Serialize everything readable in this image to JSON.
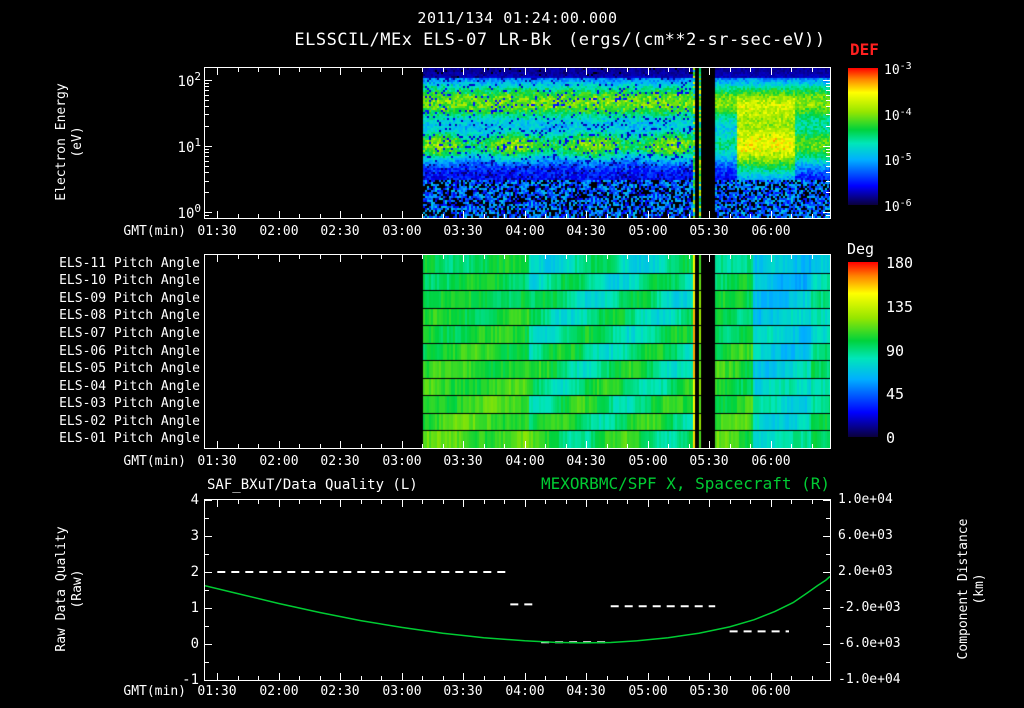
{
  "header": {
    "datetime": "2011/134 01:24:00.000",
    "instrument_title": "ELSSCIL/MEx ELS-07 LR-Bk",
    "units_label": "(ergs/(cm**2-sr-sec-eV))"
  },
  "colors": {
    "background": "#000000",
    "axis": "#ffffff",
    "def_label": "#ff2020",
    "green_series": "#00cc33"
  },
  "time_axis": {
    "label": "GMT(min)",
    "tick_labels": [
      "01:30",
      "02:00",
      "02:30",
      "03:00",
      "03:30",
      "04:00",
      "04:30",
      "05:00",
      "05:30",
      "06:00"
    ],
    "tick_minutes": [
      90,
      120,
      150,
      180,
      210,
      240,
      270,
      300,
      330,
      360
    ],
    "range_min": [
      84,
      389
    ],
    "minor_step_min": 10
  },
  "panel_energy": {
    "ylabel": [
      "Electron Energy",
      "(eV)"
    ],
    "ytick_base": "10",
    "ytick_exps": [
      "2",
      "1",
      "0"
    ],
    "colorbar": {
      "title": "DEF",
      "tick_base": "10",
      "tick_exps": [
        "-3",
        "-4",
        "-5",
        "-6"
      ]
    }
  },
  "panel_pitch": {
    "row_labels": [
      "ELS-11 Pitch Angle",
      "ELS-10 Pitch Angle",
      "ELS-09 Pitch Angle",
      "ELS-08 Pitch Angle",
      "ELS-07 Pitch Angle",
      "ELS-06 Pitch Angle",
      "ELS-05 Pitch Angle",
      "ELS-04 Pitch Angle",
      "ELS-03 Pitch Angle",
      "ELS-02 Pitch Angle",
      "ELS-01 Pitch Angle"
    ],
    "colorbar": {
      "title": "Deg",
      "ticks": [
        "180",
        "135",
        "90",
        "45",
        "0"
      ]
    }
  },
  "panel_line": {
    "title_left": "SAF_BXuT/Data Quality (L)",
    "title_right": "MEXORBMC/SPF X, Spacecraft (R)",
    "ylabel_left": [
      "Raw Data Quality",
      "(Raw)"
    ],
    "ylabel_right": [
      "Component Distance",
      "(km)"
    ],
    "yticks_left": [
      "4",
      "3",
      "2",
      "1",
      "0",
      "-1"
    ],
    "yticks_right": [
      "1.0e+04",
      "6.0e+03",
      "2.0e+03",
      "-2.0e+03",
      "-6.0e+03",
      "-1.0e+04"
    ]
  },
  "chart_data": [
    {
      "type": "heatmap",
      "name": "electron_energy_spectrogram",
      "title": "ELSSCIL/MEx ELS-07 LR-Bk",
      "z_units": "ergs/(cm**2-sr-sec-eV)",
      "z_scale": "log",
      "z_range": [
        1e-06,
        0.001
      ],
      "x_unit": "GMT minutes",
      "x_range_min": [
        84,
        389
      ],
      "y_unit": "eV",
      "y_scale": "log",
      "y_range_log10_eV": [
        -0.09,
        2.18
      ],
      "y_ticks_eV": [
        1,
        10,
        100
      ],
      "data_start_min": 190,
      "data_gap_min": [
        322,
        333
      ],
      "gap_stripes_min": [
        [
          322.6,
          323.6
        ],
        [
          324.9,
          325.9
        ]
      ],
      "background_rel_level": 0.12,
      "bands": [
        {
          "name": "core 5-20 eV band",
          "center_log10_eV": 1.02,
          "sigma_log10": 0.17,
          "rel_level": 0.38
        },
        {
          "name": "photoelectron 30-90 eV band",
          "center_log10_eV": 1.68,
          "sigma_log10": 0.22,
          "rel_level": 0.42
        },
        {
          "name": "post-gap enhancement blob",
          "t0_min": 344,
          "t1_min": 372,
          "center_log10_eV": 1.0,
          "sigma_log10": 0.32,
          "rel_level": 0.6
        }
      ]
    },
    {
      "type": "heatmap",
      "name": "pitch_angle_panels",
      "rows": [
        "ELS-11",
        "ELS-10",
        "ELS-09",
        "ELS-08",
        "ELS-07",
        "ELS-06",
        "ELS-05",
        "ELS-04",
        "ELS-03",
        "ELS-02",
        "ELS-01"
      ],
      "z_unit": "deg",
      "z_range": [
        0,
        180
      ],
      "data_start_min": 190,
      "data_gap_min": [
        322,
        333
      ],
      "gap_stripes": [
        {
          "t0": 322.6,
          "t1": 323.6,
          "deg": 152
        },
        {
          "t0": 324.9,
          "t1": 325.9,
          "deg": 118
        }
      ],
      "segments": [
        {
          "t0": 190,
          "t1": 242,
          "deg": 103,
          "var": 6
        },
        {
          "t0": 242,
          "t1": 322,
          "deg": 90,
          "var": 14
        },
        {
          "t0": 333,
          "t1": 351,
          "deg": 100,
          "var": 8
        },
        {
          "t0": 351,
          "t1": 380,
          "deg": 72,
          "var": 8
        },
        {
          "t0": 380,
          "t1": 389,
          "deg": 86,
          "var": 8
        }
      ]
    },
    {
      "type": "line",
      "name": "quality_and_distance",
      "x_range_min": [
        84,
        389
      ],
      "left_axis": {
        "label": "Raw Data Quality (Raw)",
        "range": [
          -1,
          4
        ]
      },
      "right_axis": {
        "label": "Component Distance (km)",
        "range": [
          -10000,
          10000
        ]
      },
      "series": [
        {
          "name": "SAF_BXuT/Data Quality (L)",
          "axis": "left",
          "color": "#ffffff",
          "style": "dashed",
          "segments": [
            {
              "t0": 90,
              "t1": 232,
              "y": 2.0
            },
            {
              "t0": 233,
              "t1": 246,
              "y": 1.1
            },
            {
              "t0": 248,
              "t1": 280,
              "y": 0.05
            },
            {
              "t0": 282,
              "t1": 333,
              "y": 1.05
            },
            {
              "t0": 340,
              "t1": 369,
              "y": 0.35
            }
          ]
        },
        {
          "name": "MEXORBMC/SPF X, Spacecraft (R)",
          "axis": "right",
          "color": "#00cc33",
          "style": "solid",
          "points_min_km": [
            [
              84,
              480
            ],
            [
              100,
              -400
            ],
            [
              120,
              -1500
            ],
            [
              140,
              -2500
            ],
            [
              160,
              -3400
            ],
            [
              180,
              -4150
            ],
            [
              200,
              -4800
            ],
            [
              220,
              -5300
            ],
            [
              240,
              -5650
            ],
            [
              255,
              -5820
            ],
            [
              268,
              -5880
            ],
            [
              282,
              -5830
            ],
            [
              295,
              -5650
            ],
            [
              310,
              -5300
            ],
            [
              325,
              -4800
            ],
            [
              340,
              -4100
            ],
            [
              352,
              -3300
            ],
            [
              362,
              -2400
            ],
            [
              371,
              -1400
            ],
            [
              378,
              -300
            ],
            [
              383,
              500
            ],
            [
              387,
              1100
            ],
            [
              389,
              1500
            ]
          ]
        }
      ]
    }
  ]
}
